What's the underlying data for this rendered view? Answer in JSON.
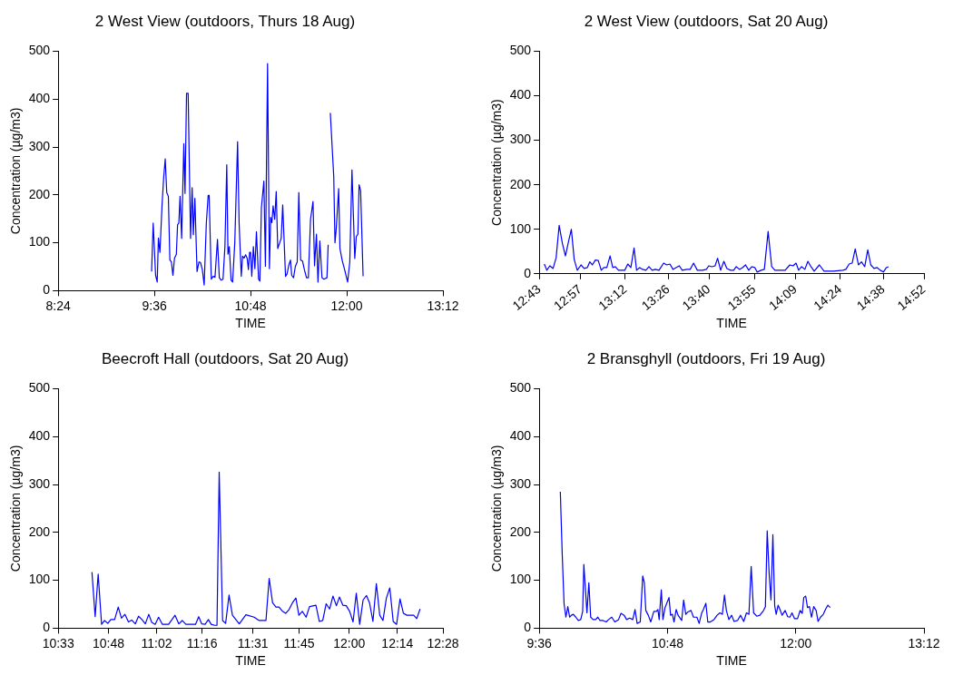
{
  "chart_data": [
    {
      "type": "line",
      "title": "2 West View (outdoors, Thurs 18 Aug)",
      "xlabel": "TIME",
      "ylabel": "Concentration (µg/m3)",
      "color": "#0000ff",
      "x": [
        9.565,
        9.585,
        9.615,
        9.635,
        9.65,
        9.669,
        9.696,
        9.716,
        9.735,
        9.754,
        9.774,
        9.793,
        9.812,
        9.831,
        9.851,
        9.874,
        9.889,
        9.905,
        9.92,
        9.94,
        9.967,
        9.982,
        10.001,
        10.021,
        10.051,
        10.071,
        10.086,
        10.105,
        10.132,
        10.156,
        10.175,
        10.198,
        10.221,
        10.248,
        10.271,
        10.283,
        10.31,
        10.333,
        10.356,
        10.387,
        10.41,
        10.433,
        10.456,
        10.48,
        10.503,
        10.518,
        10.534,
        10.557,
        10.576,
        10.603,
        10.638,
        10.657,
        10.684,
        10.7,
        10.719,
        10.738,
        10.757,
        10.773,
        10.788,
        10.8,
        10.815,
        10.835,
        10.854,
        10.873,
        10.9,
        10.916,
        10.935,
        10.966,
        10.985,
        11.012,
        11.035,
        11.051,
        11.066,
        11.081,
        11.101,
        11.12,
        11.139,
        11.163,
        11.182,
        11.201,
        11.236,
        11.255,
        11.278,
        11.298,
        11.313,
        11.336,
        11.359,
        11.382,
        11.402,
        11.425,
        11.448,
        11.471,
        11.498,
        11.521,
        11.548,
        11.579,
        11.598,
        11.622,
        11.641,
        11.664,
        11.691,
        11.714,
        11.753,
        11.768,
        11.78,
        11.795,
        11.838,
        11.853,
        11.869,
        11.899,
        11.915,
        11.942,
        11.973,
        12.011,
        12.038,
        12.065,
        12.1,
        12.119,
        12.139,
        12.154,
        12.173,
        12.204
      ],
      "values": [
        40,
        141,
        32,
        18,
        110,
        80,
        181,
        237,
        275,
        205,
        197,
        64,
        60,
        32,
        68,
        76,
        138,
        141,
        197,
        109,
        307,
        203,
        412,
        412,
        109,
        215,
        117,
        193,
        40,
        60,
        59,
        44,
        12,
        141,
        199,
        199,
        24,
        30,
        28,
        107,
        27,
        22,
        24,
        92,
        263,
        76,
        92,
        22,
        18,
        100,
        311,
        141,
        30,
        72,
        68,
        75,
        68,
        44,
        80,
        80,
        30,
        92,
        46,
        123,
        24,
        20,
        173,
        229,
        51,
        474,
        46,
        153,
        142,
        177,
        149,
        207,
        88,
        100,
        109,
        179,
        30,
        35,
        54,
        64,
        32,
        27,
        51,
        60,
        205,
        64,
        62,
        44,
        27,
        27,
        149,
        186,
        52,
        118,
        18,
        104,
        27,
        24,
        27,
        96,
        null,
        371,
        237,
        100,
        129,
        213,
        88,
        64,
        44,
        18,
        60,
        252,
        67,
        113,
        118,
        221,
        209,
        30
      ],
      "xlim": [
        8.4,
        13.2
      ],
      "xticks": [
        {
          "value": 8.4,
          "label": "8:24"
        },
        {
          "value": 9.6,
          "label": "9:36"
        },
        {
          "value": 10.8,
          "label": "10:48"
        },
        {
          "value": 12,
          "label": "12:00"
        },
        {
          "value": 13.2,
          "label": "13:12"
        }
      ],
      "ylim": [
        0,
        500
      ],
      "yticks": [
        0,
        100,
        200,
        300,
        400,
        500
      ]
    },
    {
      "type": "line",
      "title": "2 West View (outdoors, Sat 20 Aug)",
      "xlabel": "TIME",
      "ylabel": "Concentration (µg/m3)",
      "color": "#0000ff",
      "x": [
        12.748,
        12.762,
        12.779,
        12.797,
        12.814,
        12.831,
        12.849,
        12.866,
        12.883,
        12.899,
        12.915,
        12.932,
        12.953,
        12.97,
        12.988,
        13.002,
        13.016,
        13.033,
        13.049,
        13.066,
        13.08,
        13.097,
        13.115,
        13.13,
        13.144,
        13.162,
        13.179,
        13.197,
        13.214,
        13.231,
        13.249,
        13.263,
        13.28,
        13.297,
        13.315,
        13.332,
        13.35,
        13.367,
        13.388,
        13.414,
        13.431,
        13.449,
        13.466,
        13.483,
        13.501,
        13.518,
        13.544,
        13.562,
        13.581,
        13.602,
        13.631,
        13.652,
        13.666,
        13.683,
        13.701,
        13.715,
        13.732,
        13.75,
        13.767,
        13.788,
        13.805,
        13.819,
        13.837,
        13.854,
        13.871,
        13.889,
        13.906,
        13.923,
        13.936,
        13.958,
        13.976,
        13.997,
        14.017,
        14.035,
        14.066,
        14.092,
        14.118,
        14.136,
        14.153,
        14.167,
        14.184,
        14.202,
        14.219,
        14.236,
        14.254,
        14.283,
        14.309,
        14.362,
        14.414,
        14.431,
        14.449,
        14.466,
        14.483,
        14.501,
        14.518,
        14.536,
        14.553,
        14.57,
        14.588,
        14.605,
        14.623,
        14.64,
        14.657,
        14.669
      ],
      "values": [
        22,
        8,
        18,
        12,
        36,
        109,
        68,
        40,
        72,
        100,
        32,
        8,
        20,
        12,
        14,
        27,
        20,
        31,
        30,
        8,
        14,
        14,
        40,
        14,
        16,
        8,
        8,
        8,
        22,
        14,
        58,
        8,
        14,
        10,
        8,
        16,
        8,
        10,
        8,
        24,
        20,
        22,
        10,
        14,
        18,
        8,
        10,
        10,
        24,
        8,
        8,
        10,
        18,
        16,
        18,
        35,
        8,
        28,
        12,
        8,
        8,
        16,
        10,
        14,
        20,
        8,
        16,
        14,
        4,
        8,
        10,
        95,
        16,
        8,
        8,
        8,
        20,
        18,
        24,
        8,
        16,
        10,
        28,
        16,
        6,
        20,
        6,
        6,
        8,
        10,
        22,
        24,
        56,
        20,
        27,
        16,
        54,
        20,
        12,
        14,
        8,
        4,
        14,
        16
      ],
      "xlim": [
        12.72,
        14.8667
      ],
      "xticks": [
        {
          "value": 12.72,
          "label": "12:43"
        },
        {
          "value": 12.95,
          "label": "12:57"
        },
        {
          "value": 13.2,
          "label": "13:12"
        },
        {
          "value": 13.44,
          "label": "13:26"
        },
        {
          "value": 13.6667,
          "label": "13:40"
        },
        {
          "value": 13.92,
          "label": "13:55"
        },
        {
          "value": 14.15,
          "label": "14:09"
        },
        {
          "value": 14.4,
          "label": "14:24"
        },
        {
          "value": 14.64,
          "label": "14:38"
        },
        {
          "value": 14.8667,
          "label": "14:52"
        }
      ],
      "ylim": [
        0,
        500
      ],
      "yticks": [
        0,
        100,
        200,
        300,
        400,
        500
      ]
    },
    {
      "type": "line",
      "title": "Beecroft Hall (outdoors, Sat 20 Aug)",
      "xlabel": "TIME",
      "ylabel": "Concentration (µg/m3)",
      "color": "#0000ff",
      "x": [
        10.718,
        10.734,
        10.749,
        10.766,
        10.781,
        10.797,
        10.812,
        10.831,
        10.849,
        10.865,
        10.882,
        10.9,
        10.916,
        10.934,
        10.95,
        10.967,
        10.984,
        11.001,
        11.016,
        11.033,
        11.05,
        11.069,
        11.1,
        11.132,
        11.151,
        11.168,
        11.186,
        11.22,
        11.234,
        11.25,
        11.265,
        11.282,
        11.298,
        11.312,
        11.33,
        11.341,
        11.352,
        11.369,
        11.384,
        11.401,
        11.418,
        11.452,
        11.485,
        11.526,
        11.551,
        11.585,
        11.601,
        11.618,
        11.635,
        11.65,
        11.666,
        11.683,
        11.7,
        11.717,
        11.734,
        11.749,
        11.766,
        11.785,
        11.802,
        11.834,
        11.851,
        11.868,
        11.885,
        11.902,
        11.919,
        11.936,
        11.951,
        11.968,
        11.985,
        12.002,
        12.019,
        12.035,
        12.052,
        12.069,
        12.086,
        12.101,
        12.118,
        12.135,
        12.152,
        12.168,
        12.185,
        12.202,
        12.219,
        12.236,
        12.253,
        12.27,
        12.287,
        12.321,
        12.336,
        12.353
      ],
      "values": [
        117,
        24,
        113,
        8,
        16,
        10,
        18,
        18,
        44,
        21,
        29,
        13,
        17,
        9,
        25,
        18,
        9,
        29,
        12,
        8,
        23,
        8,
        8,
        27,
        9,
        16,
        8,
        8,
        8,
        24,
        9,
        8,
        18,
        8,
        6,
        6,
        326,
        16,
        10,
        69,
        27,
        9,
        28,
        23,
        16,
        16,
        104,
        53,
        44,
        44,
        36,
        31,
        39,
        53,
        63,
        27,
        35,
        23,
        45,
        48,
        14,
        16,
        51,
        40,
        67,
        47,
        65,
        48,
        47,
        35,
        13,
        73,
        8,
        59,
        68,
        53,
        14,
        93,
        27,
        16,
        63,
        84,
        14,
        8,
        61,
        31,
        27,
        27,
        20,
        40
      ],
      "xlim": [
        10.55,
        12.4667
      ],
      "xticks": [
        {
          "value": 10.55,
          "label": "10:33"
        },
        {
          "value": 10.8,
          "label": "10:48"
        },
        {
          "value": 11.04,
          "label": "11:02"
        },
        {
          "value": 11.2667,
          "label": "11:16"
        },
        {
          "value": 11.52,
          "label": "11:31"
        },
        {
          "value": 11.75,
          "label": "11:45"
        },
        {
          "value": 12,
          "label": "12:00"
        },
        {
          "value": 12.24,
          "label": "12:14"
        },
        {
          "value": 12.4667,
          "label": "12:28"
        }
      ],
      "ylim": [
        0,
        500
      ],
      "yticks": [
        0,
        100,
        200,
        300,
        400,
        500
      ]
    },
    {
      "type": "line",
      "title": "2 Bransghyll (outdoors, Fri 19 Aug)",
      "xlabel": "TIME",
      "ylabel": "Concentration (µg/m3)",
      "color": "#0000ff",
      "x": [
        9.797,
        9.814,
        9.832,
        9.849,
        9.867,
        9.884,
        9.901,
        9.919,
        9.942,
        9.965,
        9.988,
        10.006,
        10.017,
        10.035,
        10.046,
        10.064,
        10.081,
        10.104,
        10.128,
        10.148,
        10.168,
        10.197,
        10.226,
        10.249,
        10.278,
        10.307,
        10.342,
        10.365,
        10.394,
        10.417,
        10.446,
        10.475,
        10.496,
        10.516,
        10.545,
        10.568,
        10.583,
        10.597,
        10.62,
        10.643,
        10.672,
        10.696,
        10.71,
        10.722,
        10.742,
        10.757,
        10.777,
        10.814,
        10.829,
        10.846,
        10.861,
        10.881,
        10.899,
        10.933,
        10.951,
        10.971,
        10.991,
        11.02,
        11.043,
        11.075,
        11.096,
        11.119,
        11.136,
        11.159,
        11.177,
        11.2,
        11.235,
        11.264,
        11.29,
        11.313,
        11.333,
        11.351,
        11.374,
        11.4,
        11.423,
        11.455,
        11.484,
        11.513,
        11.539,
        11.562,
        11.583,
        11.606,
        11.635,
        11.664,
        11.699,
        11.716,
        11.733,
        11.751,
        11.768,
        11.786,
        11.803,
        11.817,
        11.835,
        11.852,
        11.872,
        11.901,
        11.925,
        11.945,
        11.965,
        11.988,
        12.017,
        12.041,
        12.061,
        12.075,
        12.093,
        12.11,
        12.128,
        12.148,
        12.168,
        12.191,
        12.209,
        12.232,
        12.258,
        12.278,
        12.301,
        12.322
      ],
      "values": [
        285,
        159,
        51,
        23,
        45,
        23,
        27,
        29,
        23,
        16,
        18,
        35,
        133,
        71,
        32,
        95,
        23,
        18,
        18,
        23,
        16,
        16,
        13,
        18,
        23,
        13,
        18,
        31,
        27,
        18,
        21,
        18,
        39,
        10,
        13,
        109,
        95,
        37,
        27,
        13,
        35,
        35,
        39,
        18,
        80,
        18,
        43,
        64,
        27,
        29,
        13,
        39,
        27,
        16,
        59,
        29,
        34,
        37,
        23,
        23,
        10,
        31,
        39,
        52,
        13,
        13,
        18,
        27,
        32,
        29,
        69,
        37,
        18,
        27,
        14,
        16,
        27,
        14,
        32,
        29,
        129,
        32,
        25,
        27,
        37,
        45,
        203,
        115,
        59,
        195,
        47,
        29,
        48,
        39,
        27,
        37,
        24,
        23,
        32,
        20,
        20,
        37,
        31,
        64,
        67,
        43,
        45,
        23,
        45,
        37,
        14,
        23,
        29,
        39,
        48,
        43
      ],
      "xlim": [
        9.6,
        13.2
      ],
      "xticks": [
        {
          "value": 9.6,
          "label": "9:36"
        },
        {
          "value": 10.8,
          "label": "10:48"
        },
        {
          "value": 12,
          "label": "12:00"
        },
        {
          "value": 13.2,
          "label": "13:12"
        }
      ],
      "ylim": [
        0,
        500
      ],
      "yticks": [
        0,
        100,
        200,
        300,
        400,
        500
      ]
    }
  ]
}
